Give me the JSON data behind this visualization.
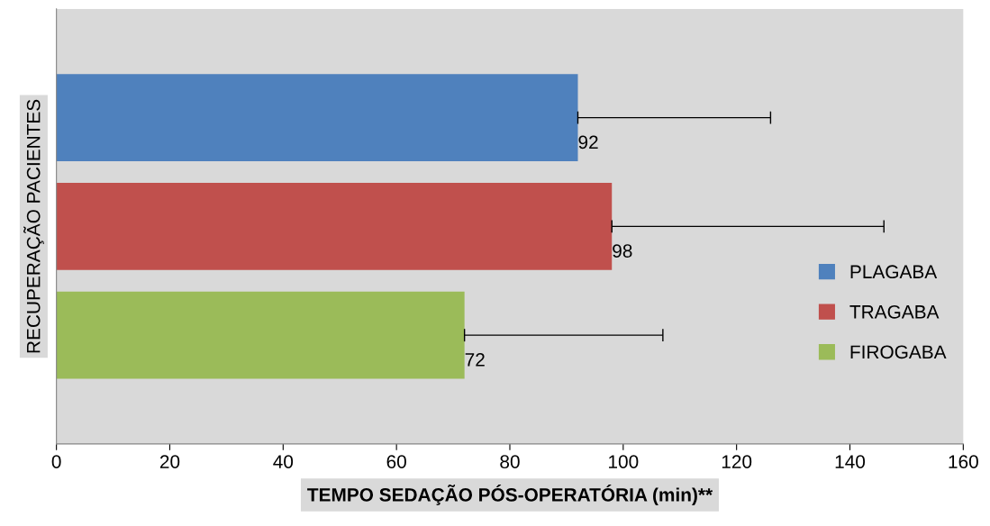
{
  "chart_data": {
    "type": "bar",
    "orientation": "horizontal",
    "ylabel": "RECUPERAÇÃO PACIENTES",
    "xlabel": "TEMPO SEDAÇÃO PÓS-OPERATÓRIA (min)**",
    "categories": [
      null
    ],
    "series": [
      {
        "name": "PLAGABA",
        "color": "#4f81bd",
        "values": [
          92
        ],
        "errors": [
          [
            92,
            126
          ]
        ]
      },
      {
        "name": "TRAGABA",
        "color": "#c0504d",
        "values": [
          98
        ],
        "errors": [
          [
            98,
            146
          ]
        ]
      },
      {
        "name": "FIROGABA",
        "color": "#9bbb59",
        "values": [
          72
        ],
        "errors": [
          [
            72,
            107
          ]
        ]
      }
    ],
    "data_labels": true,
    "xlim": [
      0,
      160
    ],
    "xticks": [
      0,
      20,
      40,
      60,
      80,
      100,
      120,
      140,
      160
    ],
    "grid": false,
    "legend": "right",
    "tick_labels": "x"
  }
}
